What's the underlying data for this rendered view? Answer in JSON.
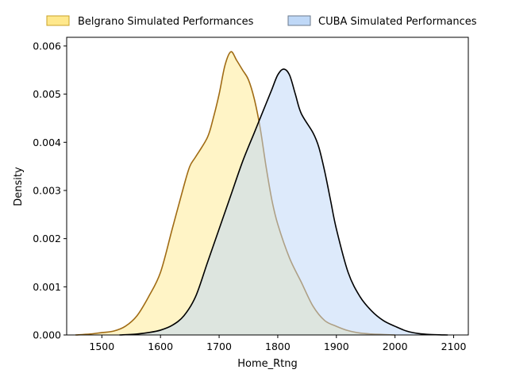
{
  "chart_data": {
    "type": "area",
    "xlabel": "Home_Rtng",
    "ylabel": "Density",
    "xlim": [
      1440,
      2125
    ],
    "ylim": [
      0,
      0.00618
    ],
    "xticks": [
      1500,
      1600,
      1700,
      1800,
      1900,
      2000,
      2100
    ],
    "xtick_labels": [
      "1500",
      "1600",
      "1700",
      "1800",
      "1900",
      "2000",
      "2100"
    ],
    "yticks": [
      0.0,
      0.001,
      0.002,
      0.003,
      0.004,
      0.005,
      0.006
    ],
    "ytick_labels": [
      "0.000",
      "0.001",
      "0.002",
      "0.003",
      "0.004",
      "0.005",
      "0.006"
    ],
    "grid": false,
    "legend_position": "top, outside plot, two columns",
    "series": [
      {
        "name": "Belgrano Simulated Performances",
        "fill": "#ffe680",
        "edge": "#a06b14",
        "x": [
          1455,
          1480,
          1500,
          1520,
          1540,
          1560,
          1580,
          1600,
          1620,
          1640,
          1650,
          1660,
          1680,
          1690,
          1700,
          1710,
          1720,
          1730,
          1740,
          1750,
          1760,
          1770,
          1780,
          1790,
          1800,
          1820,
          1840,
          1860,
          1880,
          1900,
          1920,
          1940,
          1960,
          1980,
          2000
        ],
        "y": [
          0.0,
          2e-05,
          5e-05,
          8e-05,
          0.00018,
          0.0004,
          0.0008,
          0.0013,
          0.0022,
          0.0031,
          0.0035,
          0.0037,
          0.0041,
          0.0045,
          0.005,
          0.0056,
          0.00588,
          0.0057,
          0.0055,
          0.0053,
          0.0049,
          0.0043,
          0.0035,
          0.0028,
          0.0023,
          0.0016,
          0.0011,
          0.0006,
          0.0003,
          0.00018,
          9e-05,
          4e-05,
          2e-05,
          1e-05,
          0.0
        ]
      },
      {
        "name": "CUBA Simulated Performances",
        "fill": "#bcd6f7",
        "edge": "#000000",
        "x": [
          1530,
          1560,
          1580,
          1600,
          1620,
          1640,
          1660,
          1680,
          1700,
          1720,
          1740,
          1760,
          1770,
          1780,
          1790,
          1800,
          1810,
          1820,
          1830,
          1840,
          1860,
          1870,
          1880,
          1890,
          1900,
          1920,
          1940,
          1960,
          1980,
          2000,
          2020,
          2040,
          2060,
          2090
        ],
        "y": [
          0.0,
          2e-05,
          5e-05,
          0.0001,
          0.0002,
          0.0004,
          0.0008,
          0.0015,
          0.0022,
          0.0029,
          0.0036,
          0.0042,
          0.0045,
          0.0048,
          0.0051,
          0.0054,
          0.00552,
          0.0054,
          0.005,
          0.0046,
          0.0042,
          0.0039,
          0.0034,
          0.0028,
          0.0022,
          0.0013,
          0.0008,
          0.0005,
          0.0003,
          0.00018,
          8e-05,
          3e-05,
          1e-05,
          0.0
        ]
      }
    ]
  }
}
